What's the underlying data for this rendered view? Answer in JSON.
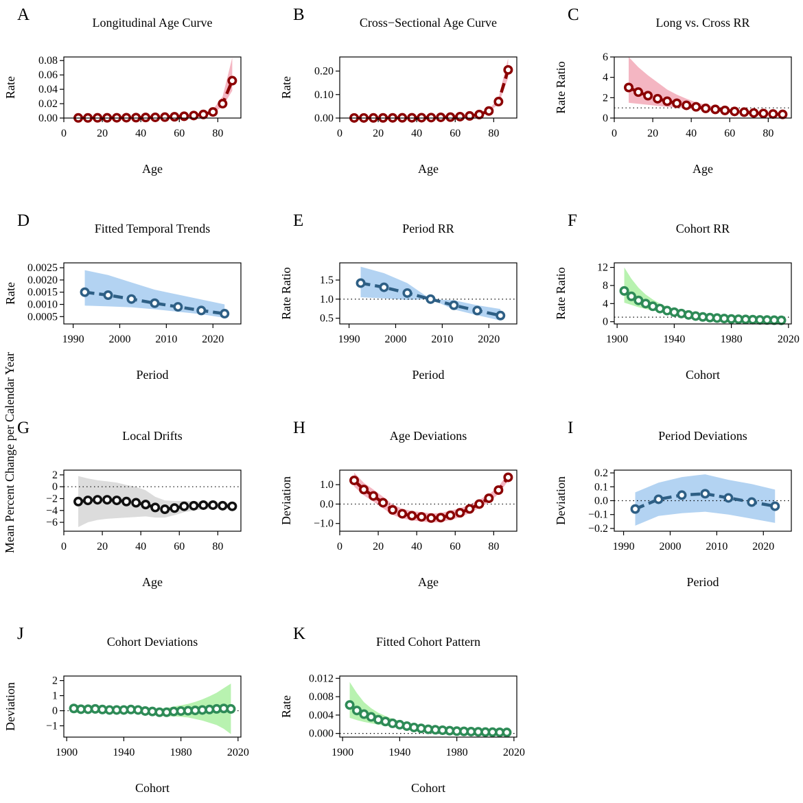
{
  "figure": {
    "colors": {
      "red": "#8b0000",
      "red_band": "#f4b6c2",
      "blue": "#2e5f85",
      "blue_band": "#b3d3f2",
      "green": "#2e8b57",
      "green_band": "#b8f2b0",
      "black": "#111111",
      "grey_band": "#dcdcdc"
    }
  },
  "chart_data": [
    {
      "id": "A",
      "letter": "A",
      "type": "line",
      "title": "Longitudinal Age Curve",
      "xlabel": "Age",
      "ylabel": "Rate",
      "xlim": [
        0,
        92
      ],
      "ylim": [
        0,
        0.085
      ],
      "xticks": [
        0,
        20,
        40,
        60,
        80
      ],
      "xtick_labels": [
        "0",
        "20",
        "40",
        "60",
        "80"
      ],
      "yticks": [
        0,
        0.02,
        0.04,
        0.06,
        0.08
      ],
      "ytick_labels": [
        "0.00",
        "0.02",
        "0.04",
        "0.06",
        "0.08"
      ],
      "color": "red",
      "band": "red_band",
      "ref_line": null,
      "x": [
        7.5,
        12.5,
        17.5,
        22.5,
        27.5,
        32.5,
        37.5,
        42.5,
        47.5,
        52.5,
        57.5,
        62.5,
        67.5,
        72.5,
        77.5,
        82.5,
        87.5
      ],
      "y": [
        0.0002,
        0.0002,
        0.0003,
        0.0003,
        0.0004,
        0.0005,
        0.0006,
        0.0008,
        0.001,
        0.0013,
        0.0018,
        0.0025,
        0.0035,
        0.005,
        0.0085,
        0.02,
        0.052
      ],
      "lower": [
        0.0001,
        0.0001,
        0.0002,
        0.0002,
        0.0003,
        0.0004,
        0.0005,
        0.0007,
        0.0009,
        0.0012,
        0.0016,
        0.0022,
        0.003,
        0.004,
        0.007,
        0.016,
        0.038
      ],
      "upper": [
        0.0004,
        0.0004,
        0.0005,
        0.0005,
        0.0006,
        0.0007,
        0.0008,
        0.001,
        0.0012,
        0.0015,
        0.0021,
        0.0029,
        0.0042,
        0.0065,
        0.012,
        0.03,
        0.084
      ]
    },
    {
      "id": "B",
      "letter": "B",
      "type": "line",
      "title": "Cross−Sectional Age Curve",
      "xlabel": "Age",
      "ylabel": "Rate",
      "xlim": [
        0,
        92
      ],
      "ylim": [
        0,
        0.26
      ],
      "xticks": [
        0,
        20,
        40,
        60,
        80
      ],
      "xtick_labels": [
        "0",
        "20",
        "40",
        "60",
        "80"
      ],
      "yticks": [
        0,
        0.1,
        0.2
      ],
      "ytick_labels": [
        "0.00",
        "0.10",
        "0.20"
      ],
      "color": "red",
      "band": "red_band",
      "ref_line": null,
      "x": [
        7.5,
        12.5,
        17.5,
        22.5,
        27.5,
        32.5,
        37.5,
        42.5,
        47.5,
        52.5,
        57.5,
        62.5,
        67.5,
        72.5,
        77.5,
        82.5,
        87.5
      ],
      "y": [
        0.0005,
        0.0005,
        0.0006,
        0.0007,
        0.0008,
        0.001,
        0.0012,
        0.0016,
        0.002,
        0.003,
        0.004,
        0.006,
        0.009,
        0.015,
        0.03,
        0.07,
        0.205
      ],
      "lower": [
        0.0003,
        0.0003,
        0.0004,
        0.0005,
        0.0006,
        0.0008,
        0.001,
        0.0013,
        0.0017,
        0.0025,
        0.0035,
        0.005,
        0.008,
        0.013,
        0.026,
        0.06,
        0.17
      ],
      "upper": [
        0.0008,
        0.0008,
        0.0009,
        0.001,
        0.0011,
        0.0013,
        0.0015,
        0.0019,
        0.0024,
        0.0035,
        0.0048,
        0.0072,
        0.011,
        0.018,
        0.036,
        0.085,
        0.255
      ]
    },
    {
      "id": "C",
      "letter": "C",
      "type": "line",
      "title": "Long vs. Cross RR",
      "xlabel": "Age",
      "ylabel": "Rate Ratio",
      "xlim": [
        0,
        92
      ],
      "ylim": [
        0,
        6
      ],
      "xticks": [
        0,
        20,
        40,
        60,
        80
      ],
      "xtick_labels": [
        "0",
        "20",
        "40",
        "60",
        "80"
      ],
      "yticks": [
        0,
        2,
        4,
        6
      ],
      "ytick_labels": [
        "0",
        "2",
        "4",
        "6"
      ],
      "color": "red",
      "band": "red_band",
      "ref_line": 1,
      "x": [
        7.5,
        12.5,
        17.5,
        22.5,
        27.5,
        32.5,
        37.5,
        42.5,
        47.5,
        52.5,
        57.5,
        62.5,
        67.5,
        72.5,
        77.5,
        82.5,
        87.5
      ],
      "y": [
        3.0,
        2.55,
        2.2,
        1.9,
        1.65,
        1.45,
        1.25,
        1.1,
        0.95,
        0.85,
        0.75,
        0.65,
        0.58,
        0.5,
        0.45,
        0.4,
        0.36
      ],
      "lower": [
        1.5,
        1.4,
        1.3,
        1.2,
        1.1,
        1.0,
        0.95,
        0.85,
        0.75,
        0.7,
        0.6,
        0.55,
        0.5,
        0.43,
        0.38,
        0.33,
        0.29
      ],
      "upper": [
        6.0,
        5.0,
        4.2,
        3.5,
        2.8,
        2.3,
        1.9,
        1.55,
        1.3,
        1.1,
        0.95,
        0.82,
        0.72,
        0.62,
        0.55,
        0.5,
        0.45
      ]
    },
    {
      "id": "D",
      "letter": "D",
      "type": "line",
      "title": "Fitted Temporal Trends",
      "xlabel": "Period",
      "ylabel": "Rate",
      "xlim": [
        1988,
        2026
      ],
      "ylim": [
        0.0002,
        0.0027
      ],
      "xticks": [
        1990,
        2000,
        2010,
        2020
      ],
      "xtick_labels": [
        "1990",
        "2000",
        "2010",
        "2020"
      ],
      "yticks": [
        0.0005,
        0.001,
        0.0015,
        0.002,
        0.0025
      ],
      "ytick_labels": [
        "0.0005",
        "0.0010",
        "0.0015",
        "0.0020",
        "0.0025"
      ],
      "color": "blue",
      "band": "blue_band",
      "ref_line": null,
      "x": [
        1992.5,
        1997.5,
        2002.5,
        2007.5,
        2012.5,
        2017.5,
        2022.5
      ],
      "y": [
        0.0015,
        0.00138,
        0.00122,
        0.00105,
        0.0009,
        0.00075,
        0.00062
      ],
      "lower": [
        0.00095,
        0.00092,
        0.00088,
        0.0008,
        0.0007,
        0.0006,
        0.00045
      ],
      "upper": [
        0.0024,
        0.0022,
        0.0019,
        0.0016,
        0.0014,
        0.0012,
        0.001
      ]
    },
    {
      "id": "E",
      "letter": "E",
      "type": "line",
      "title": "Period RR",
      "xlabel": "Period",
      "ylabel": "Rate Ratio",
      "xlim": [
        1988,
        2026
      ],
      "ylim": [
        0.35,
        1.95
      ],
      "xticks": [
        1990,
        2000,
        2010,
        2020
      ],
      "xtick_labels": [
        "1990",
        "2000",
        "2010",
        "2020"
      ],
      "yticks": [
        0.5,
        1.0,
        1.5
      ],
      "ytick_labels": [
        "0.5",
        "1.0",
        "1.5"
      ],
      "color": "blue",
      "band": "blue_band",
      "ref_line": 1,
      "x": [
        1992.5,
        1997.5,
        2002.5,
        2007.5,
        2012.5,
        2017.5,
        2022.5
      ],
      "y": [
        1.42,
        1.31,
        1.16,
        1.0,
        0.84,
        0.7,
        0.57
      ],
      "lower": [
        1.05,
        1.02,
        0.98,
        1.0,
        0.73,
        0.58,
        0.44
      ],
      "upper": [
        1.85,
        1.68,
        1.42,
        1.0,
        0.97,
        0.84,
        0.74
      ]
    },
    {
      "id": "F",
      "letter": "F",
      "type": "line",
      "title": "Cohort RR",
      "xlabel": "Cohort",
      "ylabel": "Rate Ratio",
      "xlim": [
        1898,
        2022
      ],
      "ylim": [
        -0.5,
        13
      ],
      "xticks": [
        1900,
        1940,
        1980,
        2020
      ],
      "xtick_labels": [
        "1900",
        "1940",
        "1980",
        "2020"
      ],
      "yticks": [
        0,
        4,
        8,
        12
      ],
      "ytick_labels": [
        "0",
        "4",
        "8",
        "12"
      ],
      "color": "green",
      "band": "green_band",
      "ref_line": 1,
      "x": [
        1905,
        1910,
        1915,
        1920,
        1925,
        1930,
        1935,
        1940,
        1945,
        1950,
        1955,
        1960,
        1965,
        1970,
        1975,
        1980,
        1985,
        1990,
        1995,
        2000,
        2005,
        2010,
        2015
      ],
      "y": [
        6.8,
        5.6,
        4.7,
        4.0,
        3.4,
        2.9,
        2.45,
        2.1,
        1.8,
        1.5,
        1.25,
        1.05,
        0.9,
        0.8,
        0.7,
        0.6,
        0.55,
        0.5,
        0.45,
        0.4,
        0.37,
        0.33,
        0.3
      ],
      "lower": [
        4.2,
        3.7,
        3.2,
        2.8,
        2.5,
        2.2,
        1.9,
        1.65,
        1.45,
        1.25,
        1.05,
        0.9,
        0.75,
        0.65,
        0.55,
        0.48,
        0.42,
        0.36,
        0.31,
        0.27,
        0.23,
        0.2,
        0.17
      ],
      "upper": [
        12.0,
        9.5,
        7.5,
        6.0,
        4.9,
        4.0,
        3.3,
        2.75,
        2.3,
        1.9,
        1.55,
        1.3,
        1.1,
        0.98,
        0.88,
        0.78,
        0.72,
        0.68,
        0.64,
        0.6,
        0.58,
        0.56,
        0.54
      ]
    },
    {
      "id": "G",
      "letter": "G",
      "type": "line",
      "title": "Local Drifts",
      "xlabel": "Age",
      "ylabel": "Mean Percent Change per Calendar Year",
      "xlim": [
        0,
        92
      ],
      "ylim": [
        -7.5,
        2.8
      ],
      "xticks": [
        0,
        20,
        40,
        60,
        80
      ],
      "xtick_labels": [
        "0",
        "20",
        "40",
        "60",
        "80"
      ],
      "yticks": [
        -6,
        -4,
        -2,
        0,
        2
      ],
      "ytick_labels": [
        "−6",
        "−4",
        "−2",
        "0",
        "2"
      ],
      "color": "black",
      "band": "grey_band",
      "ref_line": 0,
      "x": [
        7.5,
        12.5,
        17.5,
        22.5,
        27.5,
        32.5,
        37.5,
        42.5,
        47.5,
        52.5,
        57.5,
        62.5,
        67.5,
        72.5,
        77.5,
        82.5,
        87.5
      ],
      "y": [
        -2.5,
        -2.3,
        -2.2,
        -2.2,
        -2.3,
        -2.5,
        -2.7,
        -3.0,
        -3.5,
        -3.8,
        -3.6,
        -3.3,
        -3.2,
        -3.1,
        -3.1,
        -3.2,
        -3.3
      ],
      "lower": [
        -6.8,
        -6.0,
        -5.6,
        -5.4,
        -5.3,
        -5.2,
        -5.1,
        -5.0,
        -5.2,
        -5.2,
        -4.8,
        -4.3,
        -4.0,
        -3.8,
        -3.7,
        -3.7,
        -3.8
      ],
      "upper": [
        1.8,
        1.4,
        1.1,
        0.9,
        0.7,
        0.3,
        0.0,
        -0.6,
        -1.7,
        -2.3,
        -2.4,
        -2.4,
        -2.5,
        -2.5,
        -2.6,
        -2.7,
        -2.8
      ]
    },
    {
      "id": "H",
      "letter": "H",
      "type": "line",
      "title": "Age Deviations",
      "xlabel": "Age",
      "ylabel": "Deviation",
      "xlim": [
        0,
        92
      ],
      "ylim": [
        -1.4,
        1.75
      ],
      "xticks": [
        0,
        20,
        40,
        60,
        80
      ],
      "xtick_labels": [
        "0",
        "20",
        "40",
        "60",
        "80"
      ],
      "yticks": [
        -1.0,
        0.0,
        1.0
      ],
      "ytick_labels": [
        "−1.0",
        "0.0",
        "1.0"
      ],
      "color": "red",
      "band": "red_band",
      "ref_line": 0,
      "x": [
        7.5,
        12.5,
        17.5,
        22.5,
        27.5,
        32.5,
        37.5,
        42.5,
        47.5,
        52.5,
        57.5,
        62.5,
        67.5,
        72.5,
        77.5,
        82.5,
        87.5
      ],
      "y": [
        1.22,
        0.75,
        0.42,
        0.07,
        -0.3,
        -0.5,
        -0.6,
        -0.66,
        -0.72,
        -0.7,
        -0.58,
        -0.45,
        -0.25,
        0.0,
        0.3,
        0.72,
        1.38
      ],
      "lower": [
        0.9,
        0.45,
        0.12,
        -0.22,
        -0.56,
        -0.74,
        -0.84,
        -0.9,
        -0.95,
        -0.93,
        -0.82,
        -0.68,
        -0.47,
        -0.2,
        0.1,
        0.52,
        1.2
      ],
      "upper": [
        1.62,
        1.1,
        0.75,
        0.38,
        -0.02,
        -0.24,
        -0.36,
        -0.42,
        -0.48,
        -0.46,
        -0.34,
        -0.22,
        -0.03,
        0.22,
        0.5,
        0.9,
        1.6
      ]
    },
    {
      "id": "I",
      "letter": "I",
      "type": "line",
      "title": "Period Deviations",
      "xlabel": "Period",
      "ylabel": "Deviation",
      "xlim": [
        1988,
        2026
      ],
      "ylim": [
        -0.22,
        0.22
      ],
      "xticks": [
        1990,
        2000,
        2010,
        2020
      ],
      "xtick_labels": [
        "1990",
        "2000",
        "2010",
        "2020"
      ],
      "yticks": [
        -0.2,
        -0.1,
        0.0,
        0.1,
        0.2
      ],
      "ytick_labels": [
        "−0.2",
        "−0.1",
        "0.0",
        "0.1",
        "0.2"
      ],
      "color": "blue",
      "band": "blue_band",
      "ref_line": 0,
      "x": [
        1992.5,
        1997.5,
        2002.5,
        2007.5,
        2012.5,
        2017.5,
        2022.5
      ],
      "y": [
        -0.06,
        0.01,
        0.04,
        0.05,
        0.02,
        -0.01,
        -0.04
      ],
      "lower": [
        -0.18,
        -0.11,
        -0.09,
        -0.08,
        -0.1,
        -0.13,
        -0.16
      ],
      "upper": [
        0.06,
        0.13,
        0.17,
        0.19,
        0.15,
        0.12,
        0.08
      ]
    },
    {
      "id": "J",
      "letter": "J",
      "type": "line",
      "title": "Cohort Deviations",
      "xlabel": "Cohort",
      "ylabel": "Deviation",
      "xlim": [
        1898,
        2022
      ],
      "ylim": [
        -1.75,
        2.3
      ],
      "xticks": [
        1900,
        1940,
        1980,
        2020
      ],
      "xtick_labels": [
        "1900",
        "1940",
        "1980",
        "2020"
      ],
      "yticks": [
        -1,
        0,
        1,
        2
      ],
      "ytick_labels": [
        "−1",
        "0",
        "1",
        "2"
      ],
      "color": "green",
      "band": "green_band",
      "ref_line": 0,
      "x": [
        1905,
        1910,
        1915,
        1920,
        1925,
        1930,
        1935,
        1940,
        1945,
        1950,
        1955,
        1960,
        1965,
        1970,
        1975,
        1980,
        1985,
        1990,
        1995,
        2000,
        2005,
        2010,
        2015
      ],
      "y": [
        0.15,
        0.1,
        0.1,
        0.12,
        0.08,
        0.05,
        0.05,
        0.05,
        0.08,
        0.05,
        -0.02,
        -0.05,
        -0.1,
        -0.1,
        -0.05,
        -0.02,
        0.0,
        0.02,
        0.05,
        0.08,
        0.12,
        0.15,
        0.12
      ],
      "lower": [
        -0.15,
        -0.12,
        -0.1,
        -0.06,
        -0.08,
        -0.1,
        -0.1,
        -0.1,
        -0.08,
        -0.12,
        -0.2,
        -0.26,
        -0.34,
        -0.38,
        -0.38,
        -0.4,
        -0.45,
        -0.55,
        -0.65,
        -0.8,
        -0.95,
        -1.2,
        -1.55
      ],
      "upper": [
        0.45,
        0.32,
        0.3,
        0.3,
        0.24,
        0.2,
        0.2,
        0.2,
        0.24,
        0.22,
        0.16,
        0.16,
        0.14,
        0.18,
        0.28,
        0.36,
        0.45,
        0.59,
        0.75,
        0.96,
        1.19,
        1.5,
        1.8
      ]
    },
    {
      "id": "K",
      "letter": "K",
      "type": "line",
      "title": "Fitted Cohort Pattern",
      "xlabel": "Cohort",
      "ylabel": "Rate",
      "xlim": [
        1898,
        2022
      ],
      "ylim": [
        -0.0008,
        0.0125
      ],
      "xticks": [
        1900,
        1940,
        1980,
        2020
      ],
      "xtick_labels": [
        "1900",
        "1940",
        "1980",
        "2020"
      ],
      "yticks": [
        0,
        0.004,
        0.008,
        0.012
      ],
      "ytick_labels": [
        "0.000",
        "0.004",
        "0.008",
        "0.012"
      ],
      "color": "green",
      "band": "green_band",
      "ref_line": 0,
      "x": [
        1905,
        1910,
        1915,
        1920,
        1925,
        1930,
        1935,
        1940,
        1945,
        1950,
        1955,
        1960,
        1965,
        1970,
        1975,
        1980,
        1985,
        1990,
        1995,
        2000,
        2005,
        2010,
        2015
      ],
      "y": [
        0.0062,
        0.005,
        0.0042,
        0.0036,
        0.003,
        0.0026,
        0.0022,
        0.0019,
        0.0016,
        0.0013,
        0.0011,
        0.0009,
        0.0008,
        0.0007,
        0.0006,
        0.0005,
        0.00045,
        0.0004,
        0.00035,
        0.0003,
        0.00028,
        0.00025,
        0.00022
      ],
      "lower": [
        0.0034,
        0.0029,
        0.0025,
        0.0022,
        0.0019,
        0.0017,
        0.0015,
        0.0013,
        0.0011,
        0.0009,
        0.0008,
        0.0007,
        0.0006,
        0.0005,
        0.00045,
        0.0004,
        0.00035,
        0.0003,
        0.00026,
        0.00022,
        0.00018,
        0.00015,
        0.00012
      ],
      "upper": [
        0.0112,
        0.0088,
        0.0068,
        0.0055,
        0.0045,
        0.0038,
        0.0032,
        0.0027,
        0.0022,
        0.0018,
        0.0015,
        0.0012,
        0.001,
        0.0009,
        0.00078,
        0.00068,
        0.00062,
        0.00058,
        0.00054,
        0.0005,
        0.00048,
        0.00046,
        0.00044
      ]
    }
  ]
}
